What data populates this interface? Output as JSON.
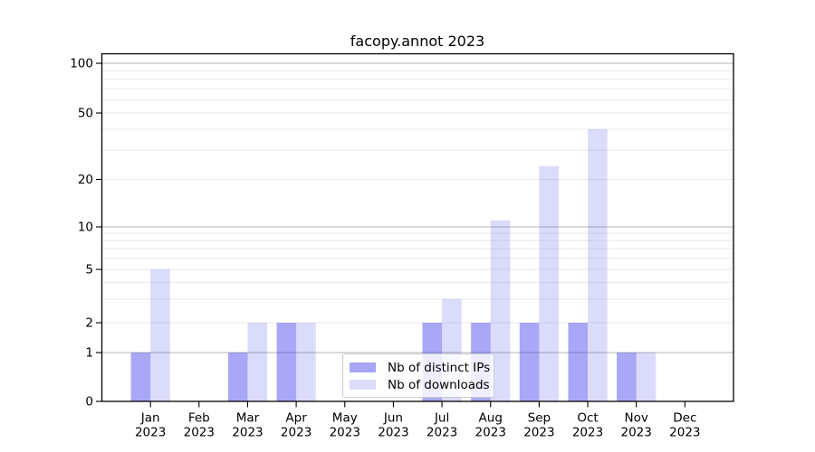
{
  "title": "facopy.annot 2023",
  "colors": {
    "bar_ips": "#a7a7f5",
    "bar_ips_rgba": "rgba(62,62,237,0.45)",
    "bar_downloads": "#dcdcfa",
    "bar_downloads_rgba": "rgba(62,62,237,0.185)",
    "grid_major": "#b5b5b5",
    "grid_minor": "#e9e9e9",
    "axis": "#000000",
    "legend_border": "#cccccc"
  },
  "legend": {
    "items": [
      "Nb of distinct IPs",
      "Nb of downloads"
    ]
  },
  "chart_data": {
    "type": "bar",
    "title": "facopy.annot 2023",
    "categories": [
      "Jan 2023",
      "Feb 2023",
      "Mar 2023",
      "Apr 2023",
      "May 2023",
      "Jun 2023",
      "Jul 2023",
      "Aug 2023",
      "Sep 2023",
      "Oct 2023",
      "Nov 2023",
      "Dec 2023"
    ],
    "series": [
      {
        "name": "Nb of distinct IPs",
        "color": "#a7a7f5",
        "values": [
          1,
          0,
          1,
          2,
          0,
          0,
          2,
          2,
          2,
          2,
          1,
          0
        ]
      },
      {
        "name": "Nb of downloads",
        "color": "#dcdcfa",
        "values": [
          5,
          0,
          2,
          2,
          0,
          0,
          3,
          11,
          24,
          40,
          1,
          0
        ]
      }
    ],
    "xlabel": "",
    "ylabel": "",
    "yscale": "symlog",
    "ylim": [
      0,
      117
    ],
    "yticks": [
      0,
      1,
      2,
      5,
      10,
      20,
      50,
      100
    ],
    "major_gridlines": [
      1,
      10,
      100
    ],
    "minor_gridlines": [
      2,
      3,
      4,
      5,
      6,
      7,
      8,
      9,
      20,
      30,
      40,
      50,
      60,
      70,
      80,
      90
    ],
    "grid": true,
    "legend_position": "lower center"
  }
}
